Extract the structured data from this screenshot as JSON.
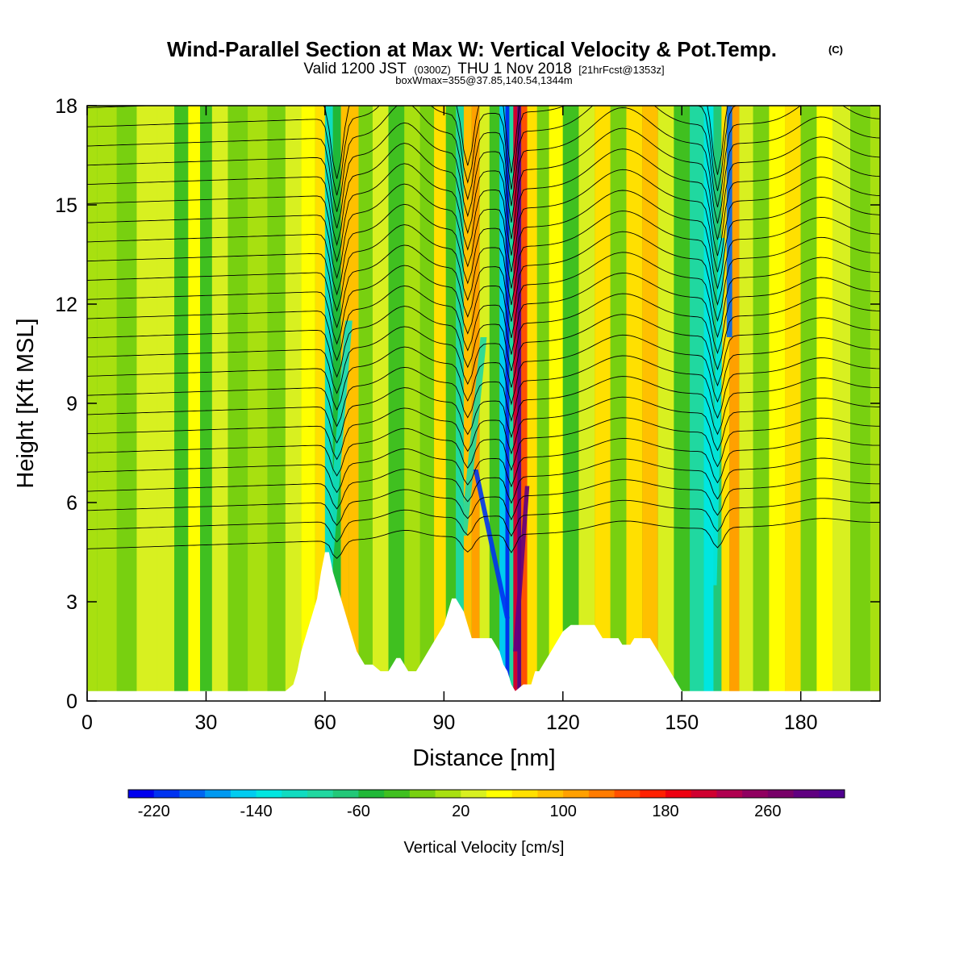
{
  "header": {
    "title": "Wind-Parallel Section at Max W: Vertical Velocity & Pot.Temp.",
    "copyright": "(C)",
    "valid_prefix": "Valid 1200 JST",
    "valid_zulu": "(0300Z)",
    "valid_date": "THU 1 Nov 2018",
    "forecast": "[21hrFcst@1353z]",
    "box_info": "boxWmax=355@37.85,140.54,1344m"
  },
  "chart_data": {
    "type": "heatmap",
    "title": "Wind-Parallel Section at Max W: Vertical Velocity & Pot.Temp.",
    "xlabel": "Distance [nm]",
    "ylabel": "Height [Kft MSL]",
    "xlim": [
      0,
      200
    ],
    "ylim": [
      0,
      18
    ],
    "xticks": [
      0,
      30,
      60,
      90,
      120,
      150,
      180
    ],
    "yticks": [
      0,
      3,
      6,
      9,
      12,
      15,
      18
    ],
    "terrain_kft": [
      [
        0,
        0.3
      ],
      [
        48,
        0.3
      ],
      [
        50,
        0.3
      ],
      [
        52,
        0.5
      ],
      [
        53,
        0.9
      ],
      [
        54,
        1.5
      ],
      [
        55,
        1.9
      ],
      [
        56,
        2.3
      ],
      [
        57,
        2.7
      ],
      [
        58,
        3.1
      ],
      [
        59,
        3.9
      ],
      [
        60,
        4.5
      ],
      [
        61,
        4.5
      ],
      [
        62,
        3.9
      ],
      [
        63,
        3.5
      ],
      [
        64,
        3.1
      ],
      [
        65,
        2.7
      ],
      [
        66,
        2.3
      ],
      [
        67,
        1.9
      ],
      [
        68,
        1.5
      ],
      [
        69,
        1.3
      ],
      [
        70,
        1.1
      ],
      [
        72,
        1.1
      ],
      [
        74,
        0.9
      ],
      [
        76,
        0.9
      ],
      [
        77,
        1.1
      ],
      [
        78,
        1.3
      ],
      [
        79,
        1.3
      ],
      [
        80,
        1.1
      ],
      [
        81,
        0.9
      ],
      [
        83,
        0.9
      ],
      [
        84,
        1.1
      ],
      [
        85,
        1.3
      ],
      [
        86,
        1.5
      ],
      [
        87,
        1.7
      ],
      [
        88,
        1.9
      ],
      [
        89,
        2.1
      ],
      [
        90,
        2.3
      ],
      [
        91,
        2.7
      ],
      [
        92,
        3.1
      ],
      [
        93,
        3.1
      ],
      [
        94,
        2.9
      ],
      [
        95,
        2.7
      ],
      [
        96,
        2.3
      ],
      [
        97,
        1.9
      ],
      [
        98,
        1.9
      ],
      [
        102,
        1.9
      ],
      [
        103,
        1.7
      ],
      [
        104,
        1.5
      ],
      [
        105,
        1.1
      ],
      [
        106,
        0.9
      ],
      [
        107,
        0.5
      ],
      [
        108,
        0.3
      ],
      [
        110,
        0.5
      ],
      [
        112,
        0.5
      ],
      [
        113,
        0.9
      ],
      [
        114,
        0.9
      ],
      [
        115,
        1.1
      ],
      [
        116,
        1.3
      ],
      [
        117,
        1.5
      ],
      [
        118,
        1.7
      ],
      [
        119,
        1.9
      ],
      [
        120,
        2.1
      ],
      [
        122,
        2.3
      ],
      [
        128,
        2.3
      ],
      [
        129,
        2.1
      ],
      [
        130,
        1.9
      ],
      [
        134,
        1.9
      ],
      [
        135,
        1.7
      ],
      [
        137,
        1.7
      ],
      [
        138,
        1.9
      ],
      [
        142,
        1.9
      ],
      [
        143,
        1.7
      ],
      [
        144,
        1.5
      ],
      [
        145,
        1.3
      ],
      [
        146,
        1.1
      ],
      [
        147,
        0.9
      ],
      [
        148,
        0.7
      ],
      [
        149,
        0.5
      ],
      [
        150,
        0.3
      ],
      [
        200,
        0.3
      ]
    ],
    "colorbar": {
      "label": "Vertical Velocity [cm/s]",
      "min": -240,
      "max": 320,
      "step": 20,
      "tick_labels": [
        "-220",
        "-140",
        "-60",
        "20",
        "100",
        "180",
        "260"
      ],
      "colors": [
        "#0000ee",
        "#0033f0",
        "#0066f0",
        "#0099f0",
        "#00ccf0",
        "#00e6e0",
        "#10dcc0",
        "#20d8a0",
        "#22c878",
        "#20b838",
        "#40c020",
        "#78d010",
        "#a8e010",
        "#d8f020",
        "#ffff00",
        "#ffe000",
        "#ffc000",
        "#ffa000",
        "#ff7c00",
        "#ff5000",
        "#ff2000",
        "#ee0010",
        "#d00030",
        "#b00050",
        "#900060",
        "#780068",
        "#600080",
        "#500090"
      ]
    },
    "bands": [
      {
        "x": 0,
        "w": 0
      },
      {
        "x": 5,
        "w": 10
      },
      {
        "x": 10,
        "w": -10
      },
      {
        "x": 15,
        "w": 20
      },
      {
        "x": 20,
        "w": 30
      },
      {
        "x": 24,
        "w": -30
      },
      {
        "x": 27,
        "w": 40
      },
      {
        "x": 30,
        "w": -40
      },
      {
        "x": 33,
        "w": 20
      },
      {
        "x": 38,
        "w": -20
      },
      {
        "x": 43,
        "w": 10
      },
      {
        "x": 48,
        "w": -20
      },
      {
        "x": 52,
        "w": 20
      },
      {
        "x": 56,
        "w": 40
      },
      {
        "x": 59,
        "w": 70
      },
      {
        "x": 61,
        "w": -120
      },
      {
        "x": 63,
        "w": -60
      },
      {
        "x": 65,
        "w": 80
      },
      {
        "x": 67,
        "w": 90
      },
      {
        "x": 70,
        "w": -20
      },
      {
        "x": 74,
        "w": 30
      },
      {
        "x": 78,
        "w": -40
      },
      {
        "x": 82,
        "w": 10
      },
      {
        "x": 86,
        "w": -10
      },
      {
        "x": 89,
        "w": 60
      },
      {
        "x": 92,
        "w": -30
      },
      {
        "x": 94,
        "w": -90
      },
      {
        "x": 96,
        "w": 90
      },
      {
        "x": 98,
        "w": 110
      },
      {
        "x": 100,
        "w": 20
      },
      {
        "x": 103,
        "w": -40
      },
      {
        "x": 105,
        "w": -160
      },
      {
        "x": 106,
        "w": -220
      },
      {
        "x": 107,
        "w": -100
      },
      {
        "x": 108,
        "w": 200
      },
      {
        "x": 109,
        "w": 280
      },
      {
        "x": 110,
        "w": 150
      },
      {
        "x": 112,
        "w": 60
      },
      {
        "x": 115,
        "w": -20
      },
      {
        "x": 118,
        "w": 40
      },
      {
        "x": 122,
        "w": -30
      },
      {
        "x": 126,
        "w": 20
      },
      {
        "x": 130,
        "w": 70
      },
      {
        "x": 134,
        "w": -20
      },
      {
        "x": 138,
        "w": 60
      },
      {
        "x": 142,
        "w": 80
      },
      {
        "x": 146,
        "w": 20
      },
      {
        "x": 150,
        "w": -40
      },
      {
        "x": 154,
        "w": -90
      },
      {
        "x": 157,
        "w": -130
      },
      {
        "x": 159,
        "w": -80
      },
      {
        "x": 161,
        "w": 60
      },
      {
        "x": 163,
        "w": 100
      },
      {
        "x": 166,
        "w": 30
      },
      {
        "x": 170,
        "w": -20
      },
      {
        "x": 174,
        "w": 40
      },
      {
        "x": 178,
        "w": 70
      },
      {
        "x": 182,
        "w": -10
      },
      {
        "x": 186,
        "w": 50
      },
      {
        "x": 190,
        "w": 20
      },
      {
        "x": 195,
        "w": -20
      },
      {
        "x": 200,
        "w": 10
      }
    ],
    "plumes": [
      {
        "x_base": 61,
        "x_top": 66,
        "y_base": 4.0,
        "y_top": 11.5,
        "width": 1.8,
        "w": -120
      },
      {
        "x_base": 95,
        "x_top": 100,
        "y_base": 5.0,
        "y_top": 11.0,
        "width": 1.6,
        "w": -100
      },
      {
        "x_base": 106,
        "x_top": 98,
        "y_base": 2.5,
        "y_top": 7.0,
        "width": 1.2,
        "w": -220
      },
      {
        "x_base": 108,
        "x_top": 111,
        "y_base": 1.5,
        "y_top": 6.5,
        "width": 1.1,
        "w": 280
      },
      {
        "x_base": 158,
        "x_top": 160,
        "y_base": 3.5,
        "y_top": 14.0,
        "width": 1.6,
        "w": -130
      },
      {
        "x_base": 162,
        "x_top": 162,
        "y_base": 11.0,
        "y_top": 18.0,
        "width": 1.4,
        "w": -200
      }
    ],
    "theta_contours": {
      "count": 24,
      "lowest_kft": 4.6,
      "spacing_kft": 0.58
    }
  }
}
